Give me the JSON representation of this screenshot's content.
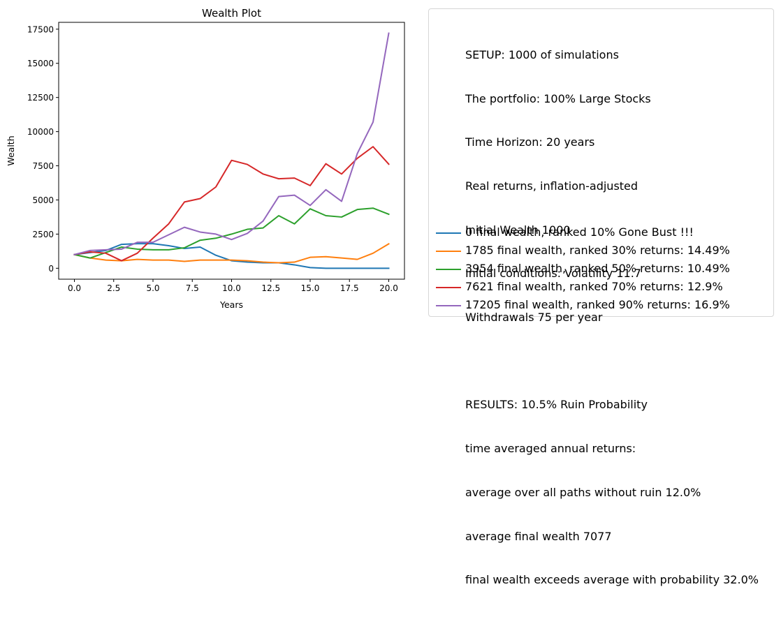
{
  "chart_data": {
    "type": "line",
    "title": "Wealth Plot",
    "xlabel": "Years",
    "ylabel": "Wealth",
    "xlim": [
      -1,
      21
    ],
    "ylim": [
      -800,
      18000
    ],
    "xticks": [
      0,
      2.5,
      5,
      7.5,
      10,
      12.5,
      15,
      17.5,
      20
    ],
    "xtick_labels": [
      "0.0",
      "2.5",
      "5.0",
      "7.5",
      "10.0",
      "12.5",
      "15.0",
      "17.5",
      "20.0"
    ],
    "yticks": [
      0,
      2500,
      5000,
      7500,
      10000,
      12500,
      15000,
      17500
    ],
    "ytick_labels": [
      "0",
      "2500",
      "5000",
      "7500",
      "10000",
      "12500",
      "15000",
      "17500"
    ],
    "grid": false,
    "legend_position": "right, outside plot",
    "x": [
      0,
      1,
      2,
      3,
      4,
      5,
      6,
      7,
      8,
      9,
      10,
      11,
      12,
      13,
      14,
      15,
      16,
      17,
      18,
      19,
      20
    ],
    "series": [
      {
        "name": "0 final wealth, ranked 10% Gone Bust !!!",
        "color": "#1f77b4",
        "values": [
          1000,
          1150,
          1300,
          1750,
          1800,
          1800,
          1650,
          1450,
          1550,
          950,
          550,
          450,
          400,
          400,
          250,
          50,
          0,
          0,
          0,
          0,
          0
        ]
      },
      {
        "name": "1785 final wealth, ranked 30% returns: 14.49%",
        "color": "#ff7f0e",
        "values": [
          1000,
          750,
          600,
          550,
          650,
          600,
          600,
          500,
          600,
          600,
          600,
          550,
          450,
          400,
          450,
          800,
          850,
          750,
          650,
          1100,
          1785
        ]
      },
      {
        "name": "3954 final wealth, ranked 50% returns: 10.49%",
        "color": "#2ca02c",
        "values": [
          1000,
          750,
          1150,
          1550,
          1400,
          1350,
          1350,
          1500,
          2050,
          2200,
          2500,
          2850,
          2950,
          3850,
          3250,
          4350,
          3850,
          3750,
          4300,
          4400,
          3954
        ]
      },
      {
        "name": "7621 final wealth, ranked 70% returns: 12.9%",
        "color": "#d62728",
        "values": [
          1000,
          1200,
          1100,
          550,
          1100,
          2200,
          3250,
          4850,
          5100,
          5950,
          7900,
          7600,
          6900,
          6550,
          6600,
          6050,
          7650,
          6900,
          8050,
          8900,
          7621
        ]
      },
      {
        "name": "17205 final wealth, ranked 90% returns: 16.9%",
        "color": "#9467bd",
        "values": [
          1000,
          1300,
          1350,
          1400,
          1900,
          1900,
          2450,
          3000,
          2650,
          2500,
          2100,
          2550,
          3450,
          5250,
          5350,
          4600,
          5750,
          4900,
          8400,
          10700,
          17205
        ]
      }
    ]
  },
  "setup_text": [
    "SETUP: 1000 of simulations",
    "The portfolio: 100% Large Stocks",
    "Time Horizon: 20 years",
    "Real returns, inflation-adjusted",
    "Initial Wealth 1000",
    "Initial conditions: Volatility 11.7",
    "Withdrawals 75 per year",
    "",
    "RESULTS: 10.5% Ruin Probability",
    "time averaged annual returns:",
    "average over all paths without ruin 12.0%",
    "average final wealth 7077",
    "final wealth exceeds average with probability 32.0%"
  ]
}
